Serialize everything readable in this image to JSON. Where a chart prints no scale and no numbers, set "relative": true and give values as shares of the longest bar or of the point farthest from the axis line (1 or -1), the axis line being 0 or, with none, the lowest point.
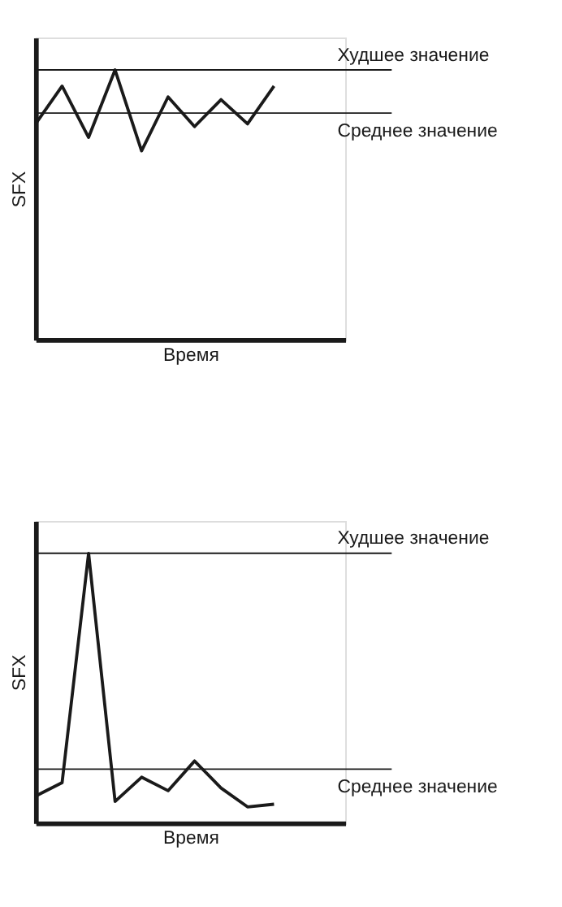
{
  "chart_data": [
    {
      "type": "line",
      "relative": true,
      "xlabel": "Время",
      "ylabel": "SFX",
      "categories": [
        null,
        null,
        null,
        null,
        null,
        null,
        null,
        null,
        null,
        null
      ],
      "series": [
        {
          "color": "#1a1a1a",
          "values": [
            0.8,
            0.94,
            0.75,
            1.0,
            0.7,
            0.9,
            0.79,
            0.89,
            0.8,
            0.94
          ]
        }
      ],
      "ref_lines": [
        {
          "axis": "y",
          "value": 1.0,
          "label": "Худшее значение",
          "color": "#1a1a1a"
        },
        {
          "axis": "y",
          "value": 0.84,
          "label": "Среднее значение",
          "color": "#1a1a1a"
        }
      ]
    },
    {
      "type": "line",
      "relative": true,
      "xlabel": "Время",
      "ylabel": "SFX",
      "categories": [
        null,
        null,
        null,
        null,
        null,
        null,
        null,
        null,
        null,
        null
      ],
      "series": [
        {
          "color": "#1a1a1a",
          "values": [
            0.1,
            0.15,
            1.0,
            0.08,
            0.17,
            0.12,
            0.23,
            0.13,
            0.06,
            0.07
          ]
        }
      ],
      "ref_lines": [
        {
          "axis": "y",
          "value": 1.0,
          "label": "Худшее значение",
          "color": "#1a1a1a"
        },
        {
          "axis": "y",
          "value": 0.2,
          "label": "Среднее значение",
          "color": "#1a1a1a"
        }
      ]
    }
  ]
}
